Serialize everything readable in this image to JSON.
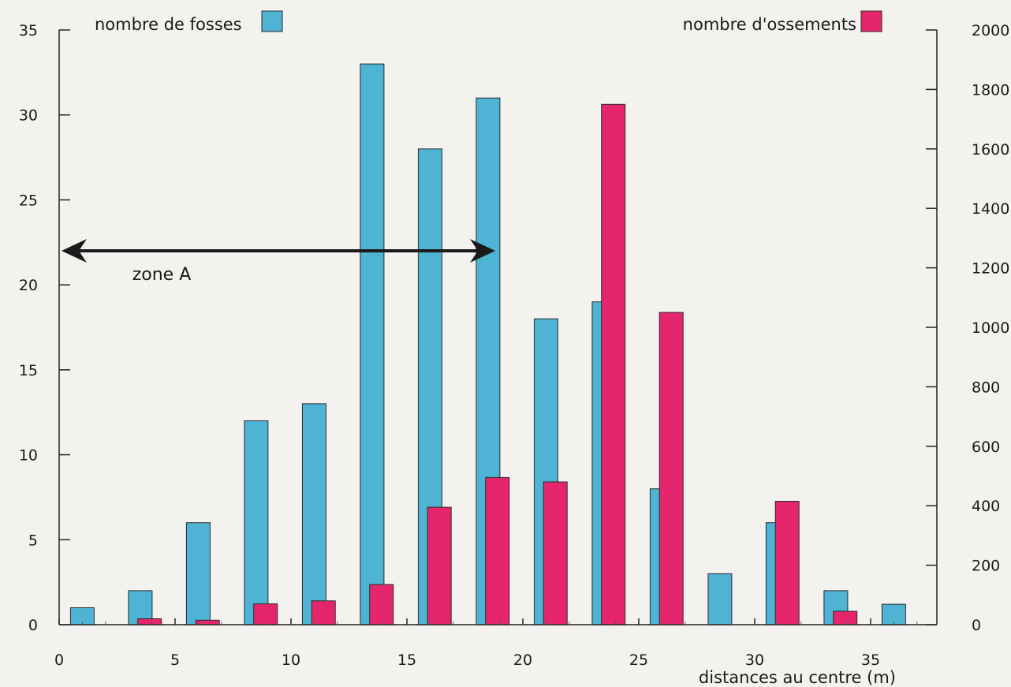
{
  "chart_data": {
    "type": "bar",
    "xlabel": "distances au centre (m)",
    "xlim": [
      0,
      38
    ],
    "x_ticks": [
      0,
      5,
      10,
      15,
      20,
      25,
      30,
      35
    ],
    "y_left": {
      "ylim": [
        0,
        35
      ],
      "ticks": [
        0,
        5,
        10,
        15,
        20,
        25,
        30,
        35
      ]
    },
    "y_right": {
      "ylim": [
        0,
        2000
      ],
      "ticks": [
        0,
        200,
        400,
        600,
        800,
        1000,
        1200,
        1400,
        1600,
        1800,
        2000
      ]
    },
    "series": [
      {
        "name": "nombre de fosses",
        "axis": "left",
        "color": "#4fb3d3",
        "x": [
          1.0,
          3.5,
          6.0,
          8.5,
          11.0,
          13.5,
          16.0,
          18.5,
          21.0,
          23.5,
          26.0,
          28.5,
          31.0,
          33.5,
          36.0
        ],
        "values": [
          1,
          2,
          6,
          12,
          13,
          33,
          28,
          31,
          18,
          19,
          8,
          3,
          6,
          2,
          1.2
        ]
      },
      {
        "name": "nombre d'ossements",
        "axis": "right",
        "color": "#e5266c",
        "x": [
          3.9,
          6.4,
          8.9,
          11.4,
          13.9,
          16.4,
          18.9,
          21.4,
          23.9,
          26.4,
          31.4,
          33.9
        ],
        "values": [
          20,
          15,
          70,
          80,
          135,
          395,
          495,
          480,
          1750,
          1050,
          415,
          45
        ]
      }
    ],
    "legend": "top",
    "annotations": [
      {
        "text": "zone A",
        "type": "double-arrow",
        "x_from": 0,
        "x_to": 19,
        "y_left": 22
      }
    ]
  }
}
